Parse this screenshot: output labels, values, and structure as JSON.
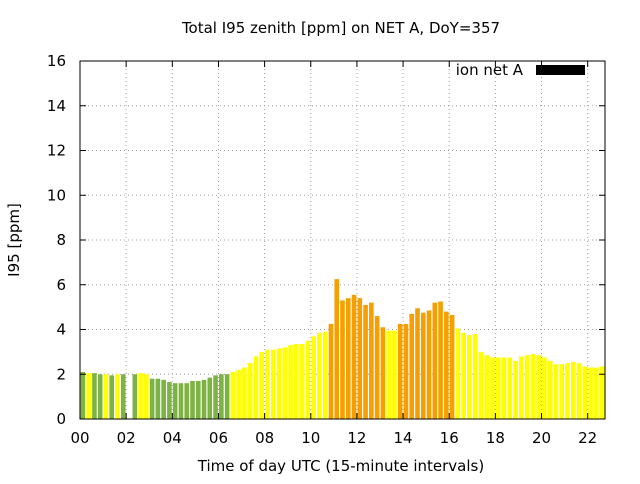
{
  "chart_data": {
    "type": "bar",
    "title": "Total I95 zenith [ppm] on NET A, DoY=357",
    "xlabel": "Time of day UTC (15-minute intervals)",
    "ylabel": "I95 [ppm]",
    "xlim": [
      0,
      22.75
    ],
    "ylim": [
      0,
      16
    ],
    "x_ticks": [
      0,
      2,
      4,
      6,
      8,
      10,
      12,
      14,
      16,
      18,
      20,
      22
    ],
    "x_tick_labels": [
      "00",
      "02",
      "04",
      "06",
      "08",
      "10",
      "12",
      "14",
      "16",
      "18",
      "20",
      "22"
    ],
    "y_ticks": [
      0,
      2,
      4,
      6,
      8,
      10,
      12,
      14,
      16
    ],
    "y_tick_labels": [
      "0",
      "2",
      "4",
      "6",
      "8",
      "10",
      "12",
      "14",
      "16"
    ],
    "grid": true,
    "legend": {
      "placement": "top-right",
      "label": "ion net A",
      "color": "#000000"
    },
    "interval_hours": 0.25,
    "colors": {
      "green": "#7cb342",
      "yellow": "#ffff00",
      "orange": "#f5a000"
    },
    "series": [
      {
        "values": [
          2.1,
          2.05,
          2.05,
          2.0,
          2.0,
          1.95,
          2.0,
          2.0,
          0,
          2.0,
          2.05,
          2.0,
          1.8,
          1.8,
          1.75,
          1.65,
          1.6,
          1.6,
          1.6,
          1.7,
          1.7,
          1.75,
          1.85,
          1.95,
          2.0,
          2.0,
          2.1,
          2.2,
          2.3,
          2.5,
          2.8,
          3.0,
          3.1,
          3.1,
          3.15,
          3.2,
          3.3,
          3.35,
          3.35,
          3.5,
          3.7,
          3.85,
          3.9,
          4.25,
          6.25,
          5.3,
          5.4,
          5.55,
          5.4,
          5.1,
          5.2,
          4.6,
          4.1,
          3.95,
          3.95,
          4.25,
          4.25,
          4.7,
          4.95,
          4.75,
          4.85,
          5.2,
          5.25,
          4.8,
          4.65,
          4.05,
          3.85,
          3.75,
          3.8,
          3.0,
          2.85,
          2.75,
          2.75,
          2.75,
          2.75,
          2.6,
          2.8,
          2.85,
          2.9,
          2.85,
          2.75,
          2.6,
          2.45,
          2.45,
          2.5,
          2.55,
          2.5,
          2.35,
          2.3,
          2.3,
          2.35
        ],
        "color_class": [
          "green",
          "yellow",
          "green",
          "green",
          "yellow",
          "green",
          "yellow",
          "green",
          "yellow",
          "green",
          "yellow",
          "yellow",
          "green",
          "green",
          "green",
          "green",
          "green",
          "green",
          "green",
          "green",
          "green",
          "green",
          "green",
          "green",
          "green",
          "green",
          "yellow",
          "yellow",
          "yellow",
          "yellow",
          "yellow",
          "yellow",
          "yellow",
          "yellow",
          "yellow",
          "yellow",
          "yellow",
          "yellow",
          "yellow",
          "yellow",
          "yellow",
          "yellow",
          "yellow",
          "orange",
          "orange",
          "orange",
          "orange",
          "orange",
          "orange",
          "orange",
          "orange",
          "orange",
          "orange",
          "yellow",
          "yellow",
          "orange",
          "orange",
          "orange",
          "orange",
          "orange",
          "orange",
          "orange",
          "orange",
          "orange",
          "orange",
          "yellow",
          "yellow",
          "yellow",
          "yellow",
          "yellow",
          "yellow",
          "yellow",
          "yellow",
          "yellow",
          "yellow",
          "yellow",
          "yellow",
          "yellow",
          "yellow",
          "yellow",
          "yellow",
          "yellow",
          "yellow",
          "yellow",
          "yellow",
          "yellow",
          "yellow",
          "yellow",
          "yellow",
          "yellow",
          "yellow"
        ]
      }
    ]
  }
}
